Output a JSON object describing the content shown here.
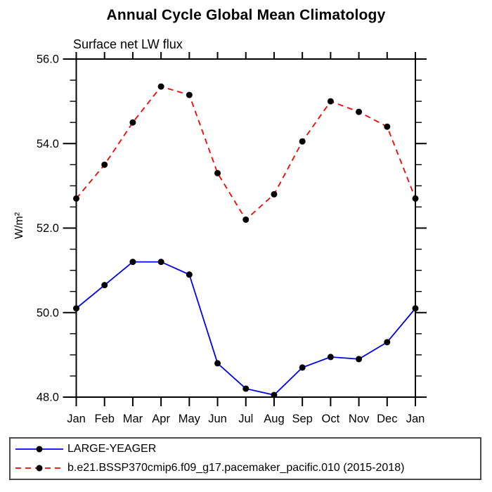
{
  "chart_data": {
    "type": "line",
    "title": "Annual Cycle Global Mean Climatology",
    "subtitle": "Surface net LW flux",
    "ylabel": "W/m²",
    "categories": [
      "Jan",
      "Feb",
      "Mar",
      "Apr",
      "May",
      "Jun",
      "Jul",
      "Aug",
      "Sep",
      "Oct",
      "Nov",
      "Dec",
      "Jan"
    ],
    "y_axis": {
      "min": 48.0,
      "max": 56.0,
      "major_step": 2.0,
      "minor_step": 0.5,
      "tick_labels": [
        "48.0",
        "50.0",
        "52.0",
        "54.0",
        "56.0"
      ]
    },
    "grid": false,
    "legend_position": "bottom-left",
    "series": [
      {
        "name": "LARGE-YEAGER",
        "color": "#0000ee",
        "line_style": "solid",
        "marker": "filled-circle",
        "marker_color": "#000000",
        "values": [
          50.1,
          50.65,
          51.2,
          51.2,
          50.9,
          48.8,
          48.2,
          48.05,
          48.7,
          48.95,
          48.9,
          49.3,
          50.1
        ]
      },
      {
        "name": "b.e21.BSSP370cmip6.f09_g17.pacemaker_pacific.010 (2015-2018)",
        "color": "#ff0000",
        "line_style": "dashed",
        "marker": "filled-circle",
        "marker_color": "#000000",
        "values": [
          52.7,
          53.5,
          54.5,
          55.35,
          55.15,
          53.3,
          52.2,
          52.8,
          54.05,
          55.0,
          54.75,
          54.4,
          52.7
        ]
      }
    ],
    "colors": {
      "axis": "#000000",
      "text": "#000000",
      "background": "#ffffff"
    }
  }
}
